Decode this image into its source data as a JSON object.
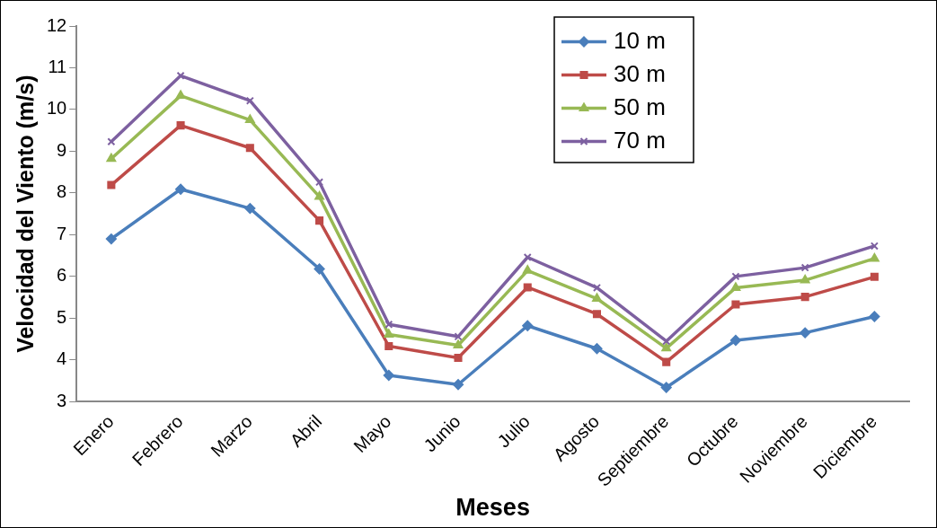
{
  "chart_data": {
    "type": "line",
    "xlabel": "Meses",
    "ylabel": "Velocidad del Viento (m/s)",
    "categories": [
      "Enero",
      "Febrero",
      "Marzo",
      "Abril",
      "Mayo",
      "Junio",
      "Julio",
      "Agosto",
      "Septiembre",
      "Octubre",
      "Noviembre",
      "Diciembre"
    ],
    "series": [
      {
        "name": "10 m",
        "color": "#4a7ebb",
        "marker": "diamond",
        "values": [
          6.9,
          8.09,
          7.63,
          6.18,
          3.63,
          3.41,
          4.82,
          4.27,
          3.34,
          4.47,
          4.65,
          5.04
        ]
      },
      {
        "name": "30 m",
        "color": "#be4b48",
        "marker": "square",
        "values": [
          8.19,
          9.62,
          9.08,
          7.34,
          4.33,
          4.05,
          5.74,
          5.1,
          3.95,
          5.33,
          5.51,
          5.99
        ]
      },
      {
        "name": "50 m",
        "color": "#98b954",
        "marker": "triangle",
        "values": [
          8.82,
          10.33,
          9.75,
          7.91,
          4.61,
          4.35,
          6.14,
          5.47,
          4.28,
          5.73,
          5.91,
          6.43
        ]
      },
      {
        "name": "70 m",
        "color": "#7d60a0",
        "marker": "cross",
        "values": [
          9.23,
          10.81,
          10.21,
          8.26,
          4.85,
          4.56,
          6.46,
          5.73,
          4.45,
          6.0,
          6.21,
          6.73
        ]
      }
    ],
    "ylim": [
      3,
      12
    ],
    "yticks": [
      3,
      4,
      5,
      6,
      7,
      8,
      9,
      10,
      11,
      12
    ],
    "grid": false,
    "legend": "top right",
    "line_style": "solid"
  }
}
